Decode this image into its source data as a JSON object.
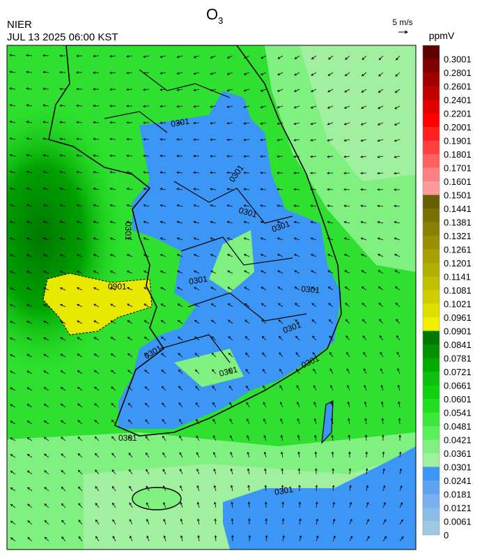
{
  "header": {
    "title": "O",
    "title_subscript": "3",
    "agency": "NIER",
    "datetime": "JUL 13 2025 06:00 KST",
    "wind_scale": "5 m/s"
  },
  "colorbar": {
    "unit": "ppmV",
    "levels": [
      0,
      0.0061,
      0.0121,
      0.0181,
      0.0241,
      0.0301,
      0.0361,
      0.0421,
      0.0481,
      0.0541,
      0.0601,
      0.0661,
      0.0721,
      0.0781,
      0.0841,
      0.0901,
      0.0961,
      0.1021,
      0.1081,
      0.1141,
      0.1201,
      0.1261,
      0.1321,
      0.1381,
      0.1441,
      0.1501,
      0.1601,
      0.1701,
      0.1801,
      0.1901,
      0.2001,
      0.2201,
      0.2401,
      0.2601,
      0.2801,
      0.3001
    ],
    "colors": [
      "#9ecae1",
      "#8cbde8",
      "#78b0f0",
      "#60a2f0",
      "#3c96f5",
      "#a0f0a0",
      "#80f080",
      "#5af05a",
      "#3ce83c",
      "#20e020",
      "#10d010",
      "#10c010",
      "#00aa00",
      "#009000",
      "#007800",
      "#f0f000",
      "#e0e000",
      "#d0d000",
      "#c0c000",
      "#b0b000",
      "#a8a000",
      "#989000",
      "#888000",
      "#787000",
      "#686000",
      "#ff9a9a",
      "#ff8080",
      "#ff6060",
      "#ff4040",
      "#ff2020",
      "#ff0000",
      "#e00000",
      "#c00000",
      "#a00000",
      "#800000",
      "#600000"
    ]
  },
  "contour_labels": [
    "0301",
    "0301",
    "0301",
    "0301",
    "0301",
    "0301",
    "0301",
    "0301",
    "0301",
    "0301",
    "0301",
    "0301",
    "0301",
    "0901"
  ]
}
